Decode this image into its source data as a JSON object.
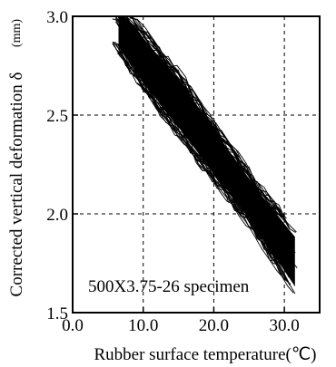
{
  "chart_data": {
    "type": "line",
    "title": "",
    "xlabel": "Rubber surface temperature(℃)",
    "ylabel": "Corrected vertical deformation δ",
    "ylabel_unit": "(mm)",
    "xlim": [
      0.0,
      35.0
    ],
    "ylim": [
      1.5,
      3.0
    ],
    "x_ticks": [
      0.0,
      10.0,
      20.0,
      30.0
    ],
    "y_ticks": [
      1.5,
      2.0,
      2.5,
      3.0
    ],
    "x_tick_labels": [
      "0.0",
      "10.0",
      "20.0",
      "30.0"
    ],
    "y_tick_labels": [
      "1.5",
      "2.0",
      "2.5",
      "3.0"
    ],
    "grid": "dashed",
    "annotation": "500X3.75-26 specimen",
    "band": {
      "upper": [
        [
          8.2,
          3.0
        ],
        [
          15.0,
          2.72
        ],
        [
          20.0,
          2.46
        ],
        [
          26.0,
          2.16
        ],
        [
          32.5,
          1.88
        ]
      ],
      "lower": [
        [
          5.3,
          2.88
        ],
        [
          10.0,
          2.63
        ],
        [
          15.0,
          2.4
        ],
        [
          20.0,
          2.17
        ],
        [
          25.0,
          1.95
        ],
        [
          31.0,
          1.62
        ]
      ],
      "series_count": 70
    }
  }
}
